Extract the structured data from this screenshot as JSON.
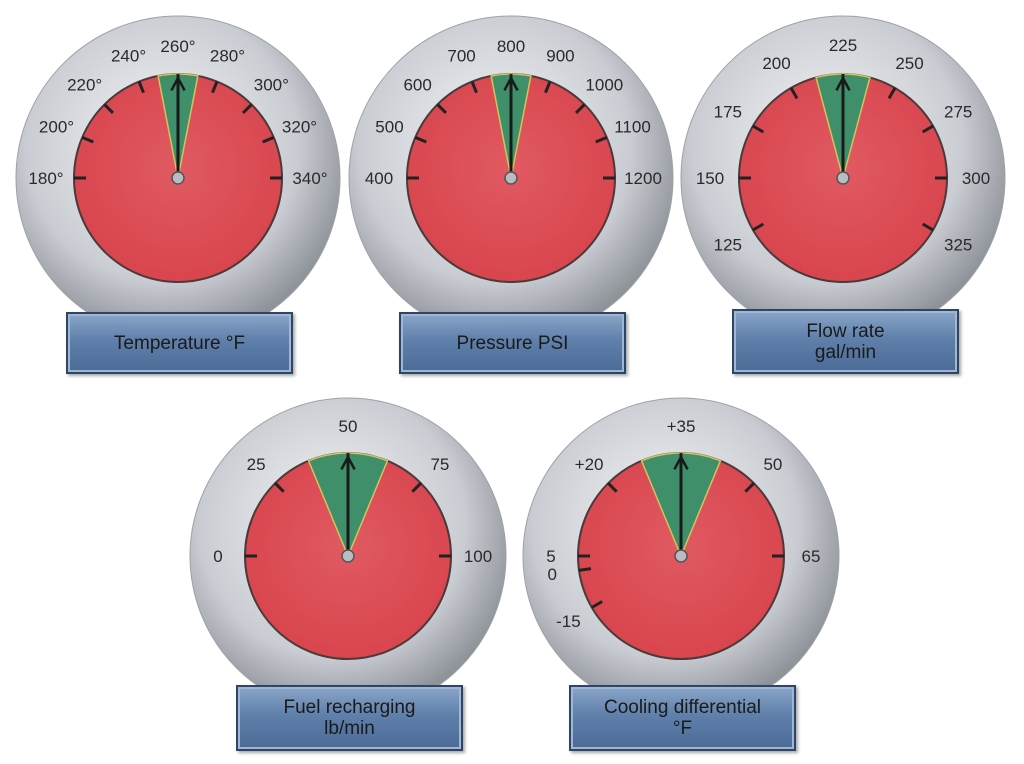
{
  "gauges": [
    {
      "id": "temperature",
      "name_lines": [
        "Temperature °F"
      ],
      "scale": [
        {
          "label": "180°",
          "value": 180
        },
        {
          "label": "200°",
          "value": 200
        },
        {
          "label": "220°",
          "value": 220
        },
        {
          "label": "240°",
          "value": 240
        },
        {
          "label": "260°",
          "value": 260
        },
        {
          "label": "280°",
          "value": 280
        },
        {
          "label": "300°",
          "value": 300
        },
        {
          "label": "320°",
          "value": 320
        },
        {
          "label": "340°",
          "value": 340
        }
      ],
      "green_range": [
        250,
        270
      ],
      "needle_value": 260
    },
    {
      "id": "pressure",
      "name_lines": [
        "Pressure PSI"
      ],
      "scale": [
        {
          "label": "400",
          "value": 400
        },
        {
          "label": "500",
          "value": 500
        },
        {
          "label": "600",
          "value": 600
        },
        {
          "label": "700",
          "value": 700
        },
        {
          "label": "800",
          "value": 800
        },
        {
          "label": "900",
          "value": 900
        },
        {
          "label": "1000",
          "value": 1000
        },
        {
          "label": "1100",
          "value": 1100
        },
        {
          "label": "1200",
          "value": 1200
        }
      ],
      "green_range": [
        750,
        850
      ],
      "needle_value": 800
    },
    {
      "id": "flow-rate",
      "name_lines": [
        "Flow rate",
        "gal/min"
      ],
      "scale": [
        {
          "label": "125",
          "value": 125
        },
        {
          "label": "150",
          "value": 150
        },
        {
          "label": "175",
          "value": 175
        },
        {
          "label": "200",
          "value": 200
        },
        {
          "label": "225",
          "value": 225
        },
        {
          "label": "250",
          "value": 250
        },
        {
          "label": "275",
          "value": 275
        },
        {
          "label": "300",
          "value": 300
        },
        {
          "label": "325",
          "value": 325
        }
      ],
      "green_range": [
        212.5,
        237.5
      ],
      "needle_value": 225
    },
    {
      "id": "fuel-recharging",
      "name_lines": [
        "Fuel recharging",
        "lb/min"
      ],
      "scale": [
        {
          "label": "0",
          "value": 0
        },
        {
          "label": "25",
          "value": 25
        },
        {
          "label": "50",
          "value": 50
        },
        {
          "label": "75",
          "value": 75
        },
        {
          "label": "100",
          "value": 100
        }
      ],
      "green_range": [
        37.5,
        62.5
      ],
      "needle_value": 50
    },
    {
      "id": "cooling-differential",
      "name_lines": [
        "Cooling differential",
        "°F"
      ],
      "scale": [
        {
          "label": "-15",
          "value": -15
        },
        {
          "label": "0",
          "value": 0
        },
        {
          "label": "5",
          "value": 5
        },
        {
          "label": "+20",
          "value": 20
        },
        {
          "label": "+35",
          "value": 35
        },
        {
          "label": "50",
          "value": 50
        },
        {
          "label": "65",
          "value": 65
        }
      ],
      "green_range": [
        27.5,
        42.5
      ],
      "needle_value": 35
    }
  ],
  "colors": {
    "dial_red": "#d8434c",
    "dial_green": "#3f8f6a",
    "bezel": "#c9ccd2",
    "plate": "#5f80ab",
    "needle": "#1a1a1a"
  }
}
